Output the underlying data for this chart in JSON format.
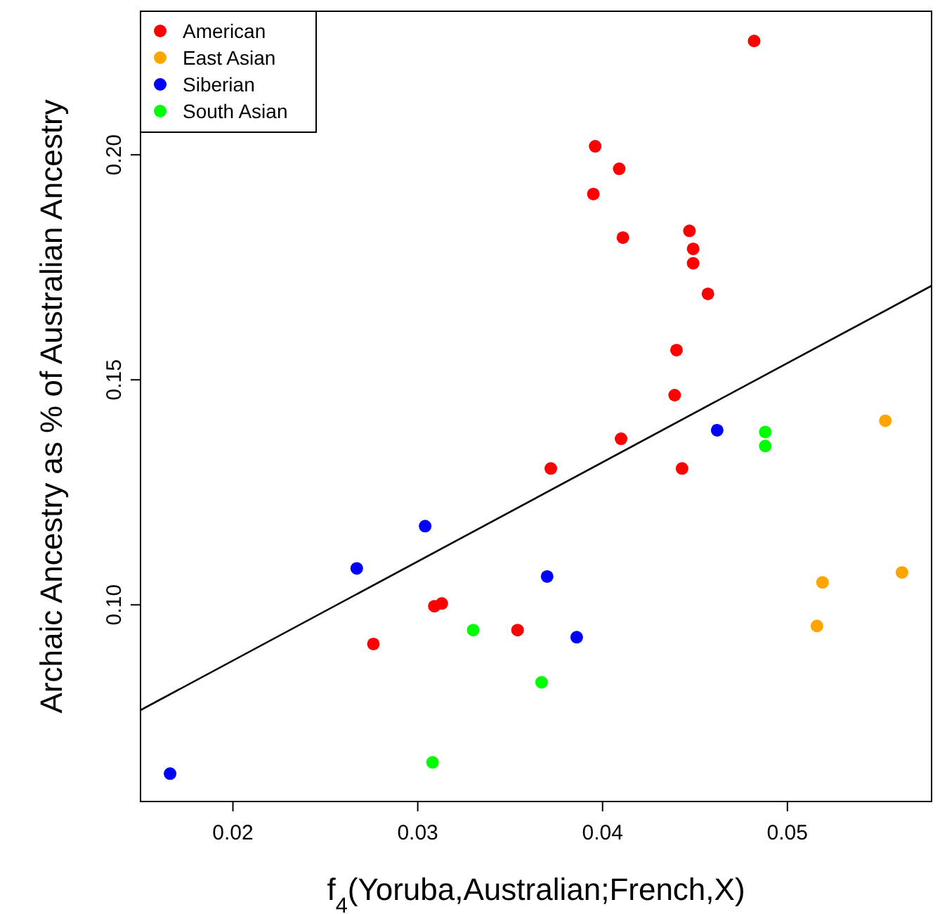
{
  "chart_data": {
    "type": "scatter",
    "xlabel": "f$_{4}$(Yoruba,Australian;French,X)",
    "ylabel": "Archaic Ancestry as % of Australian Ancestry",
    "xlim": [
      0.015,
      0.0578
    ],
    "ylim": [
      0.0563,
      0.2319
    ],
    "xticks": [
      0.02,
      0.03,
      0.04,
      0.05
    ],
    "yticks": [
      {
        "value": 0.1,
        "label": "0.10"
      },
      0.15,
      {
        "value": 0.2,
        "label": "0.20"
      }
    ],
    "grid": false,
    "legend": "top left",
    "marker": "circle",
    "series": [
      {
        "name": "American",
        "color": "#ff0000",
        "x": [
          0.0482,
          0.0396,
          0.0409,
          0.0395,
          0.0411,
          0.0447,
          0.0449,
          0.0449,
          0.0457,
          0.044,
          0.0439,
          0.041,
          0.0443,
          0.0372,
          0.0309,
          0.0313,
          0.0354,
          0.0276
        ],
        "values": [
          0.2253,
          0.2019,
          0.1969,
          0.1913,
          0.1816,
          0.1831,
          0.1791,
          0.1759,
          0.1691,
          0.1566,
          0.1466,
          0.1369,
          0.1303,
          0.1303,
          0.0997,
          0.1003,
          0.0944,
          0.0913
        ]
      },
      {
        "name": "East Asian",
        "color": "#ffa500",
        "x": [
          0.0553,
          0.0519,
          0.0562,
          0.0516
        ],
        "values": [
          0.1409,
          0.105,
          0.1072,
          0.0953
        ]
      },
      {
        "name": "Siberian",
        "color": "#0000ff",
        "x": [
          0.0166,
          0.0267,
          0.0304,
          0.037,
          0.0386,
          0.0462
        ],
        "values": [
          0.0625,
          0.1081,
          0.1175,
          0.1063,
          0.0928,
          0.1388
        ]
      },
      {
        "name": "South Asian",
        "color": "#00ff00",
        "x": [
          0.033,
          0.0367,
          0.0308,
          0.0488,
          0.0488
        ],
        "values": [
          0.0944,
          0.0828,
          0.065,
          0.1384,
          0.1353
        ]
      },
      {
        "type": "line",
        "color": "#000000",
        "marker": "none",
        "line_style": "solid",
        "x": [
          0.015,
          0.0578
        ],
        "values": [
          0.0766,
          0.1709
        ]
      }
    ]
  }
}
